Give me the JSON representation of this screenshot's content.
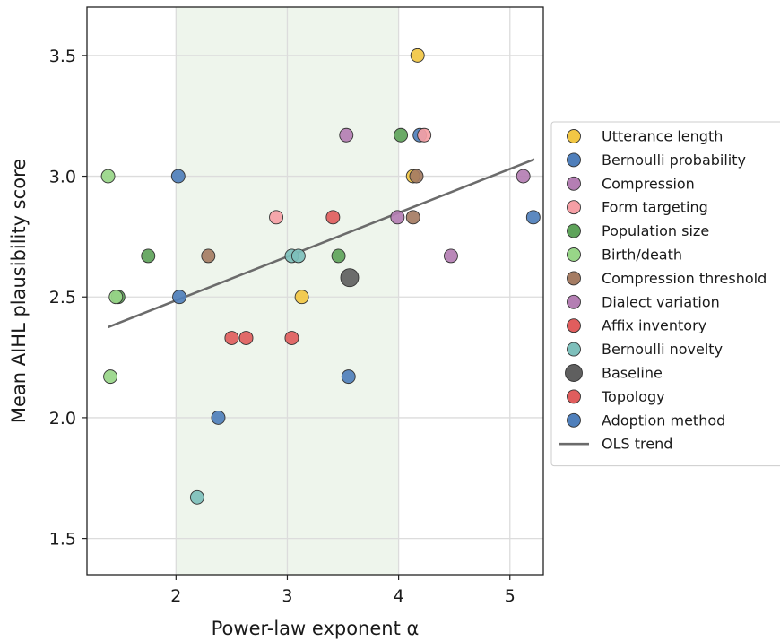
{
  "chart_data": {
    "type": "scatter",
    "xlabel": "Power-law exponent α",
    "ylabel": "Mean AIHL plausibility score",
    "xlim": [
      1.2,
      5.3
    ],
    "ylim": [
      1.35,
      3.7
    ],
    "xticks": [
      2,
      3,
      4,
      5
    ],
    "yticks": [
      1.5,
      2.0,
      2.5,
      3.0,
      3.5
    ],
    "x_tick_labels": [
      "2",
      "3",
      "4",
      "5"
    ],
    "y_tick_labels": [
      "1.5",
      "2.0",
      "2.5",
      "3.0",
      "3.5"
    ],
    "grid": true,
    "shaded_band": {
      "x_from": 2.0,
      "x_to": 4.0,
      "color": "#e3efe0"
    },
    "legend_position": "outside-right",
    "series": [
      {
        "name": "Utterance length",
        "color": "#f2c744",
        "points": [
          [
            4.17,
            3.5
          ],
          [
            4.13,
            3.0
          ],
          [
            3.13,
            2.5
          ]
        ]
      },
      {
        "name": "Bernoulli probability",
        "color": "#4f7fbb",
        "points": [
          [
            4.19,
            3.17
          ],
          [
            2.02,
            3.0
          ],
          [
            2.03,
            2.5
          ],
          [
            3.55,
            2.17
          ],
          [
            2.38,
            2.0
          ]
        ]
      },
      {
        "name": "Compression",
        "color": "#b47eb3",
        "points": [
          [
            3.53,
            3.17
          ],
          [
            5.12,
            3.0
          ],
          [
            3.99,
            2.83
          ],
          [
            4.47,
            2.67
          ]
        ]
      },
      {
        "name": "Form targeting",
        "color": "#f59fa5",
        "points": [
          [
            4.23,
            3.17
          ],
          [
            2.9,
            2.83
          ]
        ]
      },
      {
        "name": "Population size",
        "color": "#5ea35a",
        "points": [
          [
            4.02,
            3.17
          ],
          [
            1.75,
            2.67
          ],
          [
            1.48,
            2.5
          ],
          [
            3.46,
            2.67
          ]
        ]
      },
      {
        "name": "Birth/death",
        "color": "#98d688",
        "points": [
          [
            1.39,
            3.0
          ],
          [
            1.46,
            2.5
          ],
          [
            1.41,
            2.17
          ]
        ]
      },
      {
        "name": "Compression threshold",
        "color": "#a57c63",
        "points": [
          [
            4.16,
            3.0
          ],
          [
            2.29,
            2.67
          ],
          [
            4.13,
            2.83
          ]
        ]
      },
      {
        "name": "Dialect variation",
        "color": "#b47eb3",
        "points": []
      },
      {
        "name": "Affix inventory",
        "color": "#e05d5d",
        "points": [
          [
            3.41,
            2.83
          ],
          [
            2.5,
            2.33
          ],
          [
            2.63,
            2.33
          ],
          [
            3.04,
            2.33
          ]
        ]
      },
      {
        "name": "Bernoulli novelty",
        "color": "#7dbfbb",
        "points": [
          [
            3.04,
            2.67
          ],
          [
            3.1,
            2.67
          ],
          [
            2.19,
            1.67
          ]
        ]
      },
      {
        "name": "Baseline",
        "color": "#5f5f5f",
        "large": true,
        "points": [
          [
            3.56,
            2.58
          ]
        ]
      },
      {
        "name": "Topology",
        "color": "#e05d5d",
        "points": []
      },
      {
        "name": "Adoption method",
        "color": "#4f7fbb",
        "points": [
          [
            5.21,
            2.83
          ]
        ]
      }
    ],
    "trend": {
      "name": "OLS trend",
      "color": "#6b6b6b",
      "from": [
        1.39,
        2.375
      ],
      "to": [
        5.22,
        3.07
      ]
    }
  }
}
